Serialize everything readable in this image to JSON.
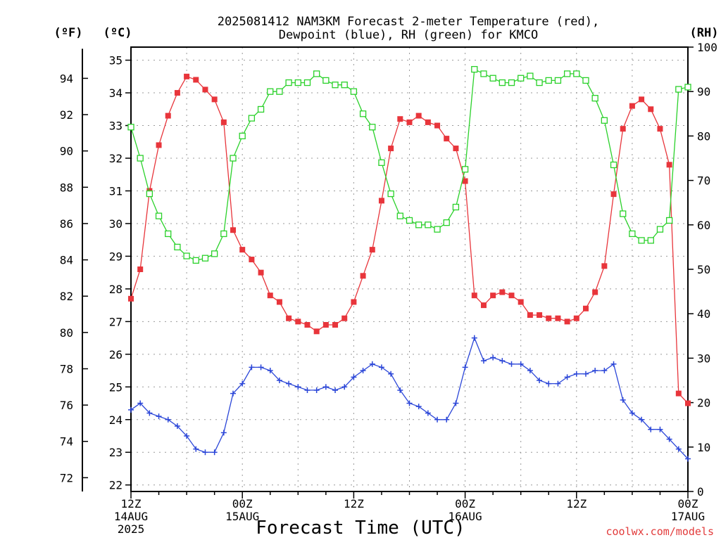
{
  "title": {
    "line1": "2025081412 NAM3KM Forecast 2-meter Temperature (red),",
    "line2": "Dewpoint (blue), RH (green) for KMCO"
  },
  "unit_labels": {
    "fahrenheit": "(ºF)",
    "celsius": "(ºC)",
    "rh": "(RH)"
  },
  "xlabel": "Forecast Time (UTC)",
  "credit": "coolwx.com/models",
  "colors": {
    "temperature": "#e8353b",
    "dewpoint": "#2b46d8",
    "rh": "#2ad12a"
  },
  "chart_data": {
    "type": "line",
    "x_unit": "forecast hour",
    "x_range": [
      0,
      60
    ],
    "x_ticks": [
      {
        "hour": 0,
        "lines": [
          "12Z",
          "14AUG",
          "2025"
        ]
      },
      {
        "hour": 12,
        "lines": [
          "00Z",
          "15AUG"
        ]
      },
      {
        "hour": 24,
        "lines": [
          "12Z"
        ]
      },
      {
        "hour": 36,
        "lines": [
          "00Z",
          "16AUG"
        ]
      },
      {
        "hour": 48,
        "lines": [
          "12Z"
        ]
      },
      {
        "hour": 60,
        "lines": [
          "00Z",
          "17AUG"
        ]
      }
    ],
    "axes": {
      "celsius": {
        "range": [
          21.8,
          35.4
        ],
        "ticks": [
          22,
          23,
          24,
          25,
          26,
          27,
          28,
          29,
          30,
          31,
          32,
          33,
          34,
          35
        ]
      },
      "fahrenheit": {
        "ticks": [
          72,
          74,
          76,
          78,
          80,
          82,
          84,
          86,
          88,
          90,
          92,
          94
        ]
      },
      "rh": {
        "range": [
          0,
          100
        ],
        "ticks": [
          0,
          10,
          20,
          30,
          40,
          50,
          60,
          70,
          80,
          90,
          100
        ]
      }
    },
    "grid": true,
    "series": [
      {
        "name": "Temperature",
        "axis": "celsius",
        "marker": "filled-square",
        "points": [
          [
            0,
            27.7
          ],
          [
            1,
            28.6
          ],
          [
            2,
            31.0
          ],
          [
            3,
            32.4
          ],
          [
            4,
            33.3
          ],
          [
            5,
            34.0
          ],
          [
            6,
            34.5
          ],
          [
            7,
            34.4
          ],
          [
            8,
            34.1
          ],
          [
            9,
            33.8
          ],
          [
            10,
            33.1
          ],
          [
            11,
            29.8
          ],
          [
            12,
            29.2
          ],
          [
            13,
            28.9
          ],
          [
            14,
            28.5
          ],
          [
            15,
            27.8
          ],
          [
            16,
            27.6
          ],
          [
            17,
            27.1
          ],
          [
            18,
            27.0
          ],
          [
            19,
            26.9
          ],
          [
            20,
            26.7
          ],
          [
            21,
            26.9
          ],
          [
            22,
            26.9
          ],
          [
            23,
            27.1
          ],
          [
            24,
            27.6
          ],
          [
            25,
            28.4
          ],
          [
            26,
            29.2
          ],
          [
            27,
            30.7
          ],
          [
            28,
            32.3
          ],
          [
            29,
            33.2
          ],
          [
            30,
            33.1
          ],
          [
            31,
            33.3
          ],
          [
            32,
            33.1
          ],
          [
            33,
            33.0
          ],
          [
            34,
            32.6
          ],
          [
            35,
            32.3
          ],
          [
            36,
            31.3
          ],
          [
            37,
            27.8
          ],
          [
            38,
            27.5
          ],
          [
            39,
            27.8
          ],
          [
            40,
            27.9
          ],
          [
            41,
            27.8
          ],
          [
            42,
            27.6
          ],
          [
            43,
            27.2
          ],
          [
            44,
            27.2
          ],
          [
            45,
            27.1
          ],
          [
            46,
            27.1
          ],
          [
            47,
            27.0
          ],
          [
            48,
            27.1
          ],
          [
            49,
            27.4
          ],
          [
            50,
            27.9
          ],
          [
            51,
            28.7
          ],
          [
            52,
            30.9
          ],
          [
            53,
            32.9
          ],
          [
            54,
            33.6
          ],
          [
            55,
            33.8
          ],
          [
            56,
            33.5
          ],
          [
            57,
            32.9
          ],
          [
            58,
            31.8
          ],
          [
            59,
            24.8
          ],
          [
            60,
            24.5
          ]
        ]
      },
      {
        "name": "Dewpoint",
        "axis": "celsius",
        "marker": "plus",
        "points": [
          [
            0,
            24.3
          ],
          [
            1,
            24.5
          ],
          [
            2,
            24.2
          ],
          [
            3,
            24.1
          ],
          [
            4,
            24.0
          ],
          [
            5,
            23.8
          ],
          [
            6,
            23.5
          ],
          [
            7,
            23.1
          ],
          [
            8,
            23.0
          ],
          [
            9,
            23.0
          ],
          [
            10,
            23.6
          ],
          [
            11,
            24.8
          ],
          [
            12,
            25.1
          ],
          [
            13,
            25.6
          ],
          [
            14,
            25.6
          ],
          [
            15,
            25.5
          ],
          [
            16,
            25.2
          ],
          [
            17,
            25.1
          ],
          [
            18,
            25.0
          ],
          [
            19,
            24.9
          ],
          [
            20,
            24.9
          ],
          [
            21,
            25.0
          ],
          [
            22,
            24.9
          ],
          [
            23,
            25.0
          ],
          [
            24,
            25.3
          ],
          [
            25,
            25.5
          ],
          [
            26,
            25.7
          ],
          [
            27,
            25.6
          ],
          [
            28,
            25.4
          ],
          [
            29,
            24.9
          ],
          [
            30,
            24.5
          ],
          [
            31,
            24.4
          ],
          [
            32,
            24.2
          ],
          [
            33,
            24.0
          ],
          [
            34,
            24.0
          ],
          [
            35,
            24.5
          ],
          [
            36,
            25.6
          ],
          [
            37,
            26.5
          ],
          [
            38,
            25.8
          ],
          [
            39,
            25.9
          ],
          [
            40,
            25.8
          ],
          [
            41,
            25.7
          ],
          [
            42,
            25.7
          ],
          [
            43,
            25.5
          ],
          [
            44,
            25.2
          ],
          [
            45,
            25.1
          ],
          [
            46,
            25.1
          ],
          [
            47,
            25.3
          ],
          [
            48,
            25.4
          ],
          [
            49,
            25.4
          ],
          [
            50,
            25.5
          ],
          [
            51,
            25.5
          ],
          [
            52,
            25.7
          ],
          [
            53,
            24.6
          ],
          [
            54,
            24.2
          ],
          [
            55,
            24.0
          ],
          [
            56,
            23.7
          ],
          [
            57,
            23.7
          ],
          [
            58,
            23.4
          ],
          [
            59,
            23.1
          ],
          [
            60,
            22.8
          ]
        ]
      },
      {
        "name": "RH",
        "axis": "rh",
        "marker": "open-square",
        "points": [
          [
            0,
            82
          ],
          [
            1,
            75
          ],
          [
            2,
            67
          ],
          [
            3,
            62
          ],
          [
            4,
            58
          ],
          [
            5,
            55
          ],
          [
            6,
            53
          ],
          [
            7,
            52
          ],
          [
            8,
            52.5
          ],
          [
            9,
            53.5
          ],
          [
            10,
            58
          ],
          [
            11,
            75
          ],
          [
            12,
            80
          ],
          [
            13,
            84
          ],
          [
            14,
            86
          ],
          [
            15,
            90
          ],
          [
            16,
            90
          ],
          [
            17,
            92
          ],
          [
            18,
            92
          ],
          [
            19,
            92
          ],
          [
            20,
            94
          ],
          [
            21,
            92.5
          ],
          [
            22,
            91.5
          ],
          [
            23,
            91.5
          ],
          [
            24,
            90
          ],
          [
            25,
            85
          ],
          [
            26,
            82
          ],
          [
            27,
            74
          ],
          [
            28,
            67
          ],
          [
            29,
            62
          ],
          [
            30,
            61
          ],
          [
            31,
            60
          ],
          [
            32,
            60
          ],
          [
            33,
            59
          ],
          [
            34,
            60.5
          ],
          [
            35,
            64
          ],
          [
            36,
            72.5
          ],
          [
            37,
            95
          ],
          [
            38,
            94
          ],
          [
            39,
            93
          ],
          [
            40,
            92
          ],
          [
            41,
            92
          ],
          [
            42,
            93
          ],
          [
            43,
            93.5
          ],
          [
            44,
            92
          ],
          [
            45,
            92.5
          ],
          [
            46,
            92.5
          ],
          [
            47,
            94
          ],
          [
            48,
            94
          ],
          [
            49,
            92.5
          ],
          [
            50,
            88.5
          ],
          [
            51,
            83.5
          ],
          [
            52,
            73.5
          ],
          [
            53,
            62.5
          ],
          [
            54,
            58
          ],
          [
            55,
            56.5
          ],
          [
            56,
            56.5
          ],
          [
            57,
            59
          ],
          [
            58,
            61
          ],
          [
            59,
            90.5
          ],
          [
            60,
            91
          ]
        ]
      }
    ]
  }
}
